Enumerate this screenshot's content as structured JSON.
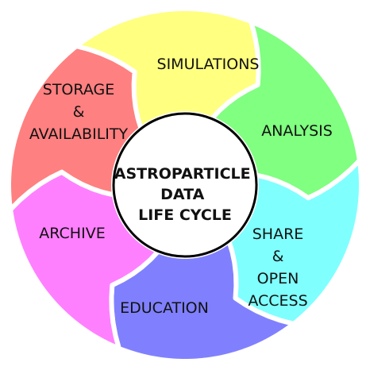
{
  "center": {
    "title_lines": [
      "ASTROPARTICLE",
      "DATA",
      "LIFE CYCLE"
    ]
  },
  "segments": [
    {
      "id": "simulations",
      "lines": [
        "SIMULATIONS"
      ],
      "color": "#ffff80"
    },
    {
      "id": "analysis",
      "lines": [
        "ANALYSIS"
      ],
      "color": "#80ff80"
    },
    {
      "id": "share-open-access",
      "lines": [
        "SHARE",
        "&",
        "OPEN",
        "ACCESS"
      ],
      "color": "#80ffff"
    },
    {
      "id": "education",
      "lines": [
        "EDUCATION"
      ],
      "color": "#8080ff"
    },
    {
      "id": "archive",
      "lines": [
        "ARCHIVE"
      ],
      "color": "#ff80ff"
    },
    {
      "id": "storage-availability",
      "lines": [
        "STORAGE",
        "&",
        "AVAILABILITY"
      ],
      "color": "#ff8080"
    }
  ]
}
